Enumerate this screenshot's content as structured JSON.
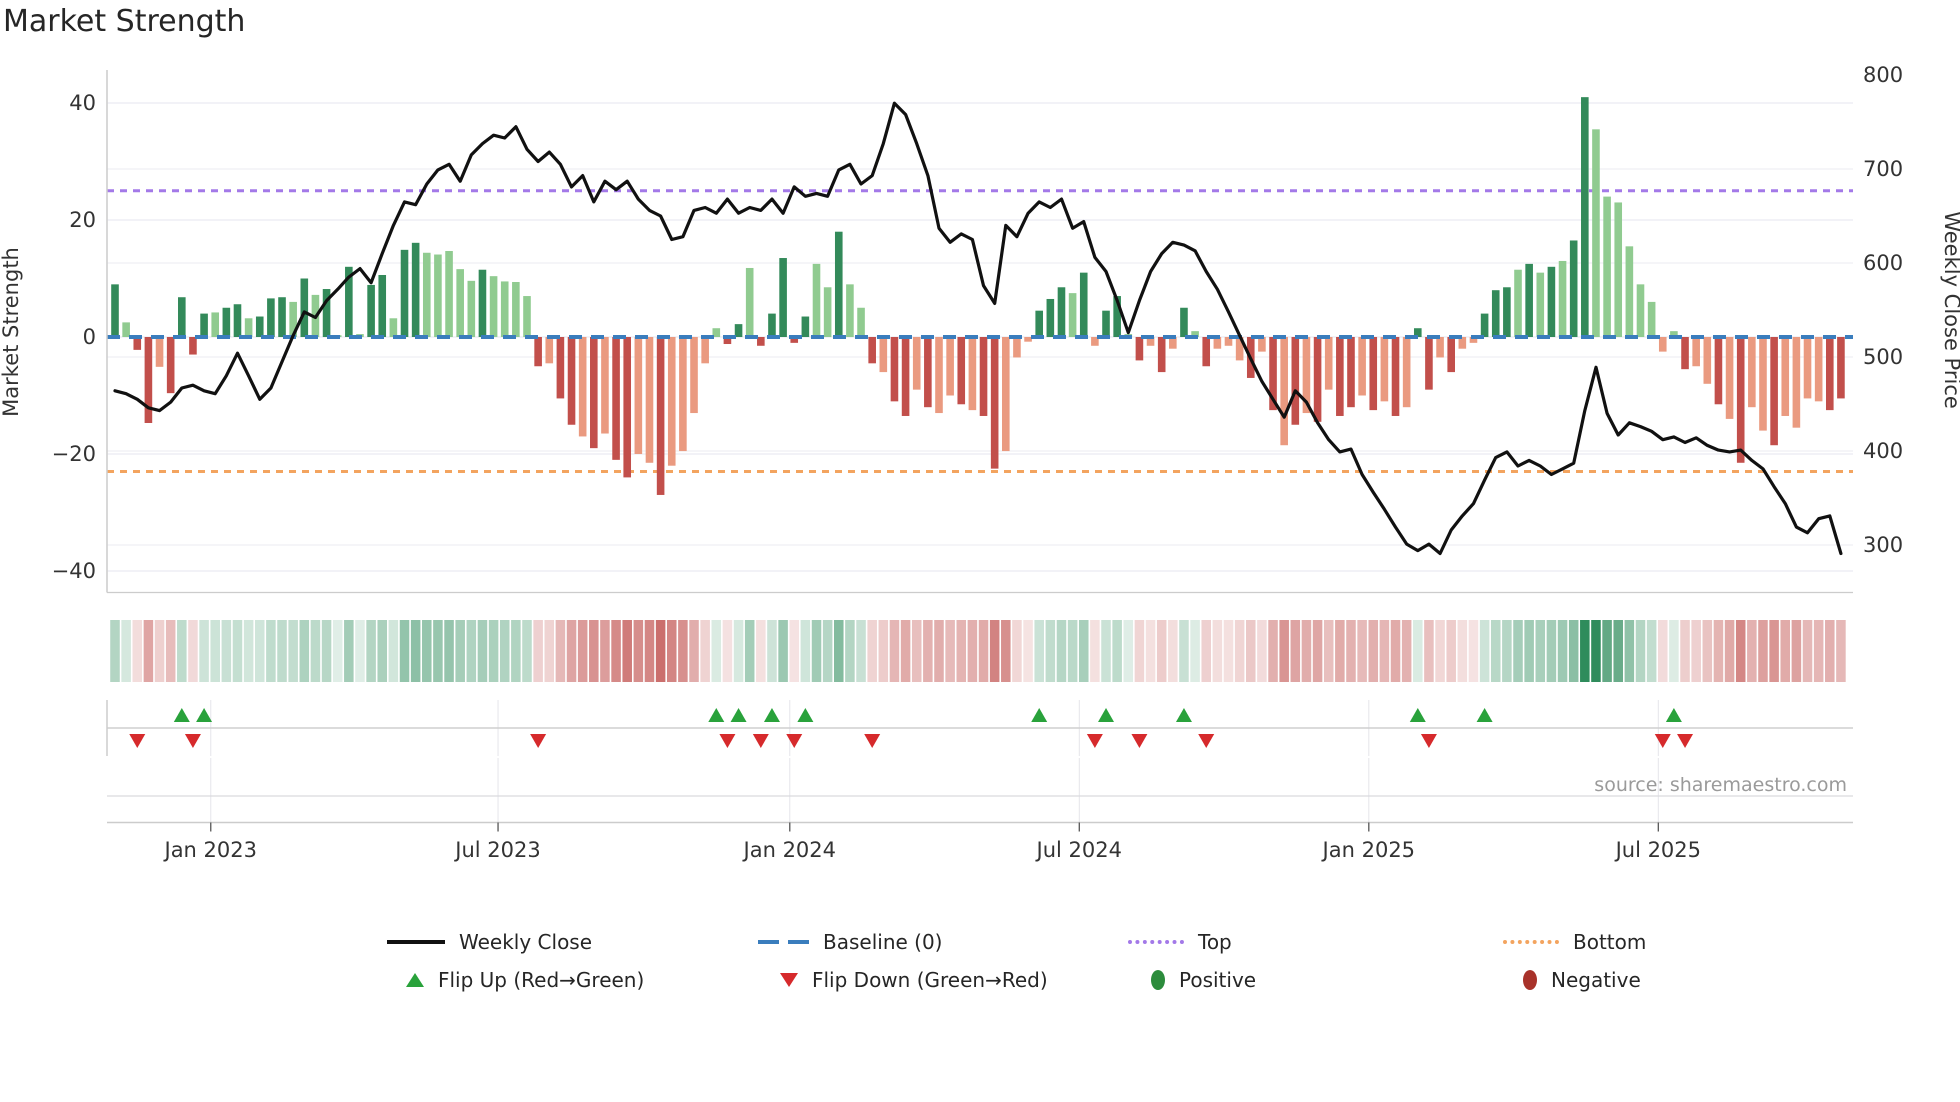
{
  "title": "Market Strength",
  "source": "source: sharemaestro.com",
  "axes": {
    "left_label": "Market Strength",
    "right_label": "Weekly Close Price",
    "left_tick_values": [
      40,
      20,
      0,
      -20,
      -40
    ],
    "left_tick_labels": [
      "40",
      "20",
      "0",
      "−20",
      "−40"
    ],
    "right_tick_values": [
      800,
      700,
      600,
      500,
      400,
      300
    ],
    "right_tick_labels": [
      "800",
      "700",
      "600",
      "500",
      "400",
      "300"
    ],
    "x_tick_labels": [
      "Jan 2023",
      "Jul 2023",
      "Jan 2024",
      "Jul 2024",
      "Jan 2025",
      "Jul 2025"
    ]
  },
  "legend": {
    "weekly_close": "Weekly Close",
    "baseline": "Baseline (0)",
    "top": "Top",
    "bottom": "Bottom",
    "flip_up": "Flip Up (Red→Green)",
    "flip_down": "Flip Down (Green→Red)",
    "positive": "Positive",
    "negative": "Negative"
  },
  "colors": {
    "bar_green_dark": "#338a5a",
    "bar_green_light": "#90cb90",
    "bar_red_dark": "#c24f4b",
    "bar_red_light": "#ea9a80",
    "line": "#111111",
    "baseline": "#3a7dbd",
    "top": "#a379e8",
    "bottom": "#f3a45f",
    "flip_up": "#29a23b",
    "flip_down": "#d62a2c",
    "positive_dot": "#2c8c3c",
    "negative_dot": "#a8322a",
    "heat_green": "#2f8c5c",
    "heat_red": "#c0504d",
    "grid": "#ebebf2",
    "spine": "#cccccc",
    "tick_text": "#333333",
    "source_text": "#9a9a9a"
  },
  "chart_data": {
    "type": "combo_bar_line",
    "x_unit": "week",
    "n_weeks": 156,
    "title": "Market Strength",
    "ylabel_left": "Market Strength",
    "ylabel_right": "Weekly Close Price",
    "ylim_left": [
      -44,
      46
    ],
    "ylim_right": [
      250,
      805
    ],
    "baseline_level": 0,
    "top_level": 25,
    "bottom_level": -23,
    "x_tick_weeks": [
      8.6,
      34.4,
      60.6,
      86.6,
      112.6,
      138.6
    ],
    "x_tick_labels": [
      "Jan 2023",
      "Jul 2023",
      "Jan 2024",
      "Jul 2024",
      "Jan 2025",
      "Jul 2025"
    ],
    "strength": [
      9,
      2.5,
      -2.2,
      -14.7,
      -5.1,
      -9.6,
      6.8,
      -3,
      4,
      4.2,
      5,
      5.6,
      3.2,
      3.5,
      6.6,
      6.8,
      6.0,
      10,
      7.2,
      8.2,
      0.3,
      12,
      0.5,
      8.9,
      10.6,
      3.2,
      14.9,
      16.1,
      14.4,
      14.1,
      14.7,
      11.6,
      9.6,
      11.5,
      10.4,
      9.5,
      9.4,
      7,
      -5,
      -4.5,
      -10.5,
      -15,
      -17,
      -19,
      -16.5,
      -21,
      -24,
      -20,
      -21.5,
      -27,
      -22,
      -19.5,
      -13,
      -4.5,
      1.5,
      -1.2,
      2.2,
      11.8,
      -1.5,
      4,
      13.5,
      -1,
      3.5,
      12.5,
      8.5,
      18,
      9,
      5,
      -4.5,
      -6,
      -11,
      -13.5,
      -9,
      -12,
      -13,
      -10,
      -11.5,
      -12.5,
      -13.5,
      -22.5,
      -19.5,
      -3.5,
      -0.8,
      4.5,
      6.5,
      8.5,
      7.5,
      11,
      -1.5,
      4.5,
      7,
      0.5,
      -4,
      -1.5,
      -6,
      -2,
      5,
      1,
      -5,
      -2,
      -1.5,
      -4,
      -7,
      -2.5,
      -12.5,
      -18.5,
      -15,
      -13,
      -14.5,
      -9,
      -13.5,
      -12,
      -10,
      -12.5,
      -11,
      -13.5,
      -12,
      1.5,
      -9,
      -3.5,
      -6,
      -2,
      -1,
      4,
      8,
      8.5,
      11.5,
      12.5,
      11,
      12,
      13,
      16.5,
      41,
      35.5,
      24,
      23,
      15.5,
      9,
      6,
      -2.5,
      1,
      -5.5,
      -5,
      -8,
      -11.5,
      -14,
      -21.5,
      -12,
      -16,
      -18.5,
      -13.5,
      -15.5,
      -10.5,
      -11,
      -12.5,
      -10.5
    ],
    "dark": [
      1,
      0,
      1,
      1,
      0,
      1,
      1,
      1,
      1,
      0,
      1,
      1,
      0,
      1,
      1,
      1,
      0,
      1,
      0,
      1,
      0,
      1,
      0,
      1,
      1,
      0,
      1,
      1,
      0,
      0,
      0,
      0,
      0,
      1,
      0,
      0,
      0,
      0,
      1,
      0,
      1,
      1,
      0,
      1,
      0,
      1,
      1,
      0,
      0,
      1,
      0,
      0,
      0,
      0,
      0,
      1,
      1,
      0,
      1,
      1,
      1,
      1,
      1,
      0,
      0,
      1,
      0,
      0,
      1,
      0,
      1,
      1,
      0,
      1,
      0,
      0,
      1,
      0,
      1,
      1,
      0,
      0,
      0,
      1,
      1,
      1,
      0,
      1,
      0,
      1,
      1,
      0,
      1,
      0,
      1,
      0,
      1,
      0,
      1,
      0,
      0,
      0,
      1,
      0,
      1,
      0,
      1,
      0,
      1,
      0,
      1,
      1,
      0,
      1,
      0,
      1,
      0,
      1,
      1,
      0,
      1,
      0,
      0,
      1,
      1,
      1,
      0,
      1,
      0,
      1,
      0,
      1,
      1,
      0,
      0,
      0,
      0,
      0,
      0,
      0,
      0,
      1,
      0,
      0,
      1,
      0,
      1,
      0,
      0,
      1,
      0,
      0,
      0,
      0,
      1,
      1
    ],
    "weekly_close": [
      464,
      461,
      455,
      446,
      443,
      452,
      467,
      470,
      464,
      461,
      480,
      504,
      480,
      455,
      467,
      495,
      523,
      548,
      542,
      560,
      572,
      585,
      594,
      579,
      610,
      640,
      665,
      662,
      684,
      699,
      705,
      687,
      715,
      727,
      736,
      733,
      745,
      721,
      708,
      718,
      705,
      681,
      693,
      665,
      687,
      678,
      687,
      668,
      656,
      650,
      625,
      628,
      656,
      659,
      653,
      668,
      653,
      659,
      656,
      668,
      653,
      681,
      671,
      674,
      671,
      699,
      705,
      684,
      693,
      727,
      770,
      758,
      727,
      693,
      637,
      622,
      631,
      625,
      576,
      557,
      640,
      628,
      653,
      665,
      659,
      668,
      637,
      644,
      606,
      591,
      560,
      526,
      560,
      591,
      610,
      622,
      619,
      613,
      591,
      572,
      548,
      523,
      498,
      474,
      455,
      436,
      464,
      452,
      430,
      412,
      399,
      402,
      375,
      356,
      338,
      319,
      301,
      294,
      301,
      291,
      316,
      331,
      344,
      369,
      393,
      399,
      384,
      390,
      384,
      375,
      381,
      387,
      443,
      489,
      440,
      417,
      430,
      426,
      421,
      412,
      415,
      409,
      414,
      406,
      401,
      399,
      401,
      390,
      381,
      362,
      344,
      319,
      313,
      328,
      331,
      291
    ],
    "flip_up_weeks": [
      6,
      8,
      54,
      56,
      59,
      62,
      83,
      89,
      96,
      117,
      123,
      140
    ],
    "flip_down_weeks": [
      2,
      7,
      38,
      55,
      58,
      61,
      68,
      88,
      92,
      98,
      118,
      139,
      141
    ]
  }
}
